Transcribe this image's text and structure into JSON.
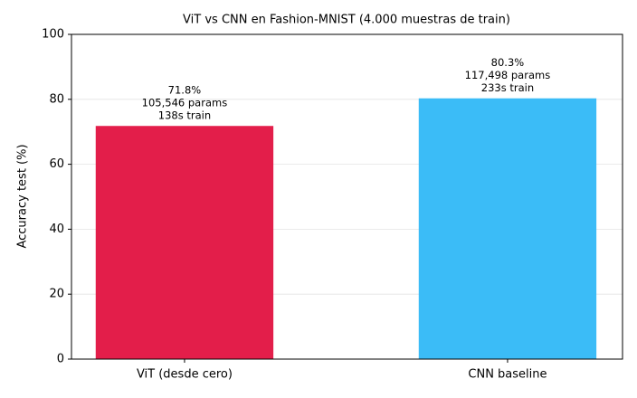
{
  "chart_data": {
    "type": "bar",
    "title": "ViT vs CNN en Fashion-MNIST (4.000 muestras de train)",
    "y_label": "Accuracy test (%)",
    "categories": [
      "ViT (desde cero)",
      "CNN baseline"
    ],
    "values": [
      71.8,
      80.3
    ],
    "value_labels": [
      "71.8%",
      "80.3%"
    ],
    "params_labels": [
      "105,546 params",
      "117,498 params"
    ],
    "train_labels": [
      "138s train",
      "233s train"
    ],
    "colors": [
      "#e31e4a",
      "#3bbcf7"
    ],
    "ylim": [
      0,
      100
    ],
    "yticks": [
      0,
      20,
      40,
      60,
      80,
      100
    ],
    "grid": true
  }
}
